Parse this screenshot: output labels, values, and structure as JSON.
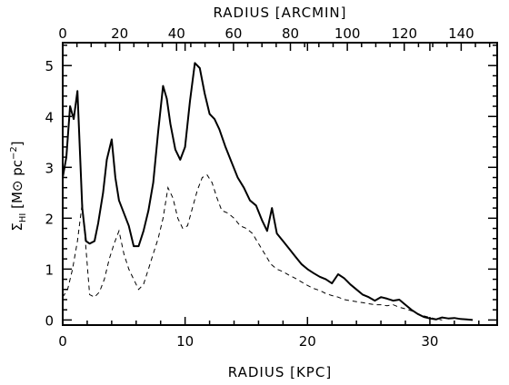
{
  "chart_data": {
    "type": "line",
    "title": "",
    "xlabel": "RADIUS [KPC]",
    "ylabel": "Σ_HI [M⊙ pc^-2]",
    "ylabel_parts": {
      "sigma": "Σ",
      "sub": "HI",
      "units_pre": " [M",
      "sun": "⊙",
      "units_mid": " pc",
      "sup": "−2",
      "units_post": "]"
    },
    "x2label": "RADIUS [ARCMIN]",
    "xlim": [
      0,
      35.5
    ],
    "ylim": [
      -0.1,
      5.45
    ],
    "x_ticks": [
      0,
      10,
      20,
      30
    ],
    "y_ticks": [
      0,
      1,
      2,
      3,
      4,
      5
    ],
    "x2_ticks": [
      0,
      20,
      40,
      60,
      80,
      100,
      120,
      140
    ],
    "x2_per_kpc": 4.3,
    "grid": false,
    "legend": "none",
    "series": [
      {
        "style": "solid",
        "x": [
          0.0,
          0.3,
          0.6,
          0.9,
          1.2,
          1.6,
          1.9,
          2.2,
          2.6,
          2.9,
          3.3,
          3.6,
          4.0,
          4.3,
          4.6,
          5.0,
          5.4,
          5.8,
          6.2,
          6.6,
          7.0,
          7.4,
          7.8,
          8.2,
          8.5,
          8.8,
          9.2,
          9.6,
          10.0,
          10.4,
          10.8,
          11.2,
          11.6,
          12.0,
          12.4,
          12.8,
          13.3,
          13.8,
          14.3,
          14.8,
          15.3,
          15.8,
          16.3,
          16.7,
          17.1,
          17.5,
          18.0,
          18.5,
          19.0,
          19.5,
          20.0,
          20.5,
          21.0,
          21.5,
          22.0,
          22.5,
          23.0,
          23.5,
          24.0,
          24.5,
          25.0,
          25.5,
          26.0,
          26.5,
          27.0,
          27.5,
          28.0,
          28.5,
          29.0,
          29.5,
          30.0,
          30.5,
          31.0,
          31.5,
          32.0,
          32.5,
          33.0,
          33.5
        ],
        "y": [
          2.8,
          3.2,
          4.2,
          3.95,
          4.5,
          2.2,
          1.55,
          1.5,
          1.55,
          1.9,
          2.5,
          3.15,
          3.55,
          2.8,
          2.35,
          2.1,
          1.85,
          1.45,
          1.45,
          1.75,
          2.15,
          2.7,
          3.7,
          4.6,
          4.35,
          3.85,
          3.35,
          3.15,
          3.4,
          4.3,
          5.05,
          4.95,
          4.45,
          4.05,
          3.95,
          3.75,
          3.4,
          3.1,
          2.8,
          2.6,
          2.35,
          2.25,
          1.95,
          1.75,
          2.2,
          1.7,
          1.55,
          1.4,
          1.25,
          1.1,
          1.0,
          0.92,
          0.85,
          0.8,
          0.72,
          0.9,
          0.82,
          0.7,
          0.6,
          0.5,
          0.45,
          0.38,
          0.45,
          0.42,
          0.38,
          0.4,
          0.3,
          0.2,
          0.12,
          0.06,
          0.03,
          0.01,
          0.05,
          0.03,
          0.04,
          0.02,
          0.01,
          0.0
        ]
      },
      {
        "style": "dashed",
        "x": [
          0.0,
          0.4,
          0.8,
          1.2,
          1.6,
          1.9,
          2.2,
          2.6,
          3.0,
          3.4,
          3.8,
          4.2,
          4.6,
          5.0,
          5.4,
          5.8,
          6.2,
          6.6,
          7.0,
          7.4,
          7.8,
          8.2,
          8.6,
          9.0,
          9.4,
          9.8,
          10.2,
          10.6,
          11.0,
          11.4,
          11.8,
          12.2,
          12.6,
          13.0,
          13.5,
          14.0,
          14.5,
          15.0,
          15.5,
          16.0,
          16.5,
          17.0,
          17.5,
          18.0,
          18.5,
          19.0,
          19.5,
          20.0,
          20.5,
          21.0,
          21.5,
          22.0,
          22.5,
          23.0,
          23.5,
          24.0,
          24.5,
          25.0,
          25.5,
          26.0,
          26.5,
          27.0,
          27.5,
          28.0,
          28.5,
          29.0,
          29.5,
          30.0,
          30.5,
          31.0
        ],
        "y": [
          0.45,
          0.6,
          1.0,
          1.55,
          2.3,
          1.4,
          0.5,
          0.45,
          0.55,
          0.8,
          1.2,
          1.5,
          1.75,
          1.3,
          1.0,
          0.8,
          0.6,
          0.7,
          1.0,
          1.3,
          1.6,
          2.0,
          2.6,
          2.4,
          2.0,
          1.8,
          1.85,
          2.2,
          2.55,
          2.8,
          2.85,
          2.7,
          2.4,
          2.15,
          2.1,
          2.0,
          1.85,
          1.8,
          1.7,
          1.5,
          1.3,
          1.1,
          1.0,
          0.95,
          0.88,
          0.82,
          0.75,
          0.68,
          0.62,
          0.58,
          0.52,
          0.48,
          0.45,
          0.4,
          0.38,
          0.36,
          0.34,
          0.32,
          0.3,
          0.3,
          0.28,
          0.3,
          0.25,
          0.22,
          0.18,
          0.12,
          0.08,
          0.05,
          0.02,
          0.0
        ]
      }
    ]
  }
}
